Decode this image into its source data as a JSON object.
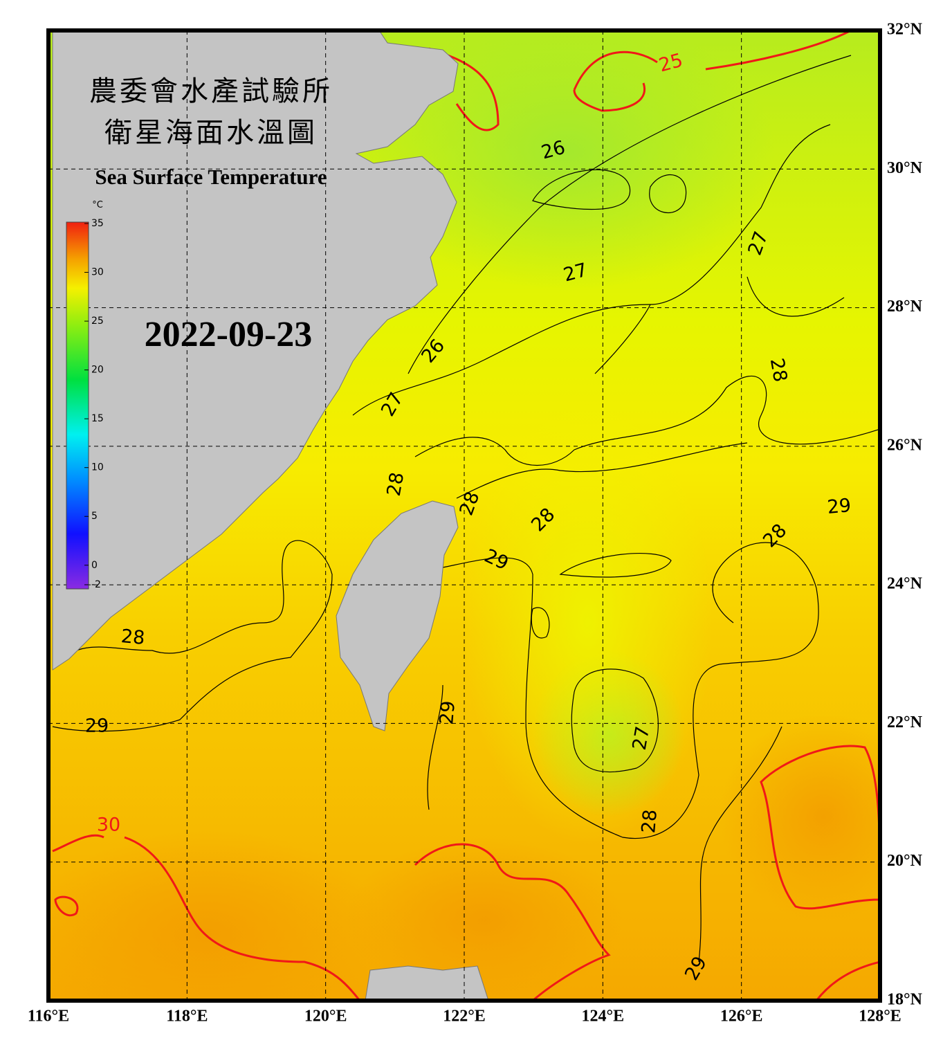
{
  "header": {
    "title_zh": "農委會水產試驗所",
    "subtitle_zh": "衛星海面水溫圖",
    "title_en": "Sea Surface Temperature",
    "date": "2022-09-23"
  },
  "colorbar": {
    "unit": "°C",
    "range": [
      -2,
      35
    ],
    "ticks": [
      35,
      30,
      25,
      20,
      15,
      10,
      5,
      0,
      -2
    ]
  },
  "lon_ticks": [
    {
      "value": 116,
      "label": "116°E"
    },
    {
      "value": 118,
      "label": "118°E"
    },
    {
      "value": 120,
      "label": "120°E"
    },
    {
      "value": 122,
      "label": "122°E"
    },
    {
      "value": 124,
      "label": "124°E"
    },
    {
      "value": 126,
      "label": "126°E"
    },
    {
      "value": 128,
      "label": "128°E"
    }
  ],
  "lat_ticks": [
    {
      "value": 32,
      "label": "32°N"
    },
    {
      "value": 30,
      "label": "30°N"
    },
    {
      "value": 28,
      "label": "28°N"
    },
    {
      "value": 26,
      "label": "26°N"
    },
    {
      "value": 24,
      "label": "24°N"
    },
    {
      "value": 22,
      "label": "22°N"
    },
    {
      "value": 20,
      "label": "20°N"
    },
    {
      "value": 18,
      "label": "18°N"
    }
  ],
  "lon_range": [
    116,
    128
  ],
  "lat_range": [
    18,
    32
  ],
  "contour_labels": [
    25,
    26,
    27,
    27,
    26,
    28,
    27,
    28,
    28,
    28,
    29,
    28,
    29,
    28,
    29,
    29,
    27,
    28,
    30,
    29
  ]
}
